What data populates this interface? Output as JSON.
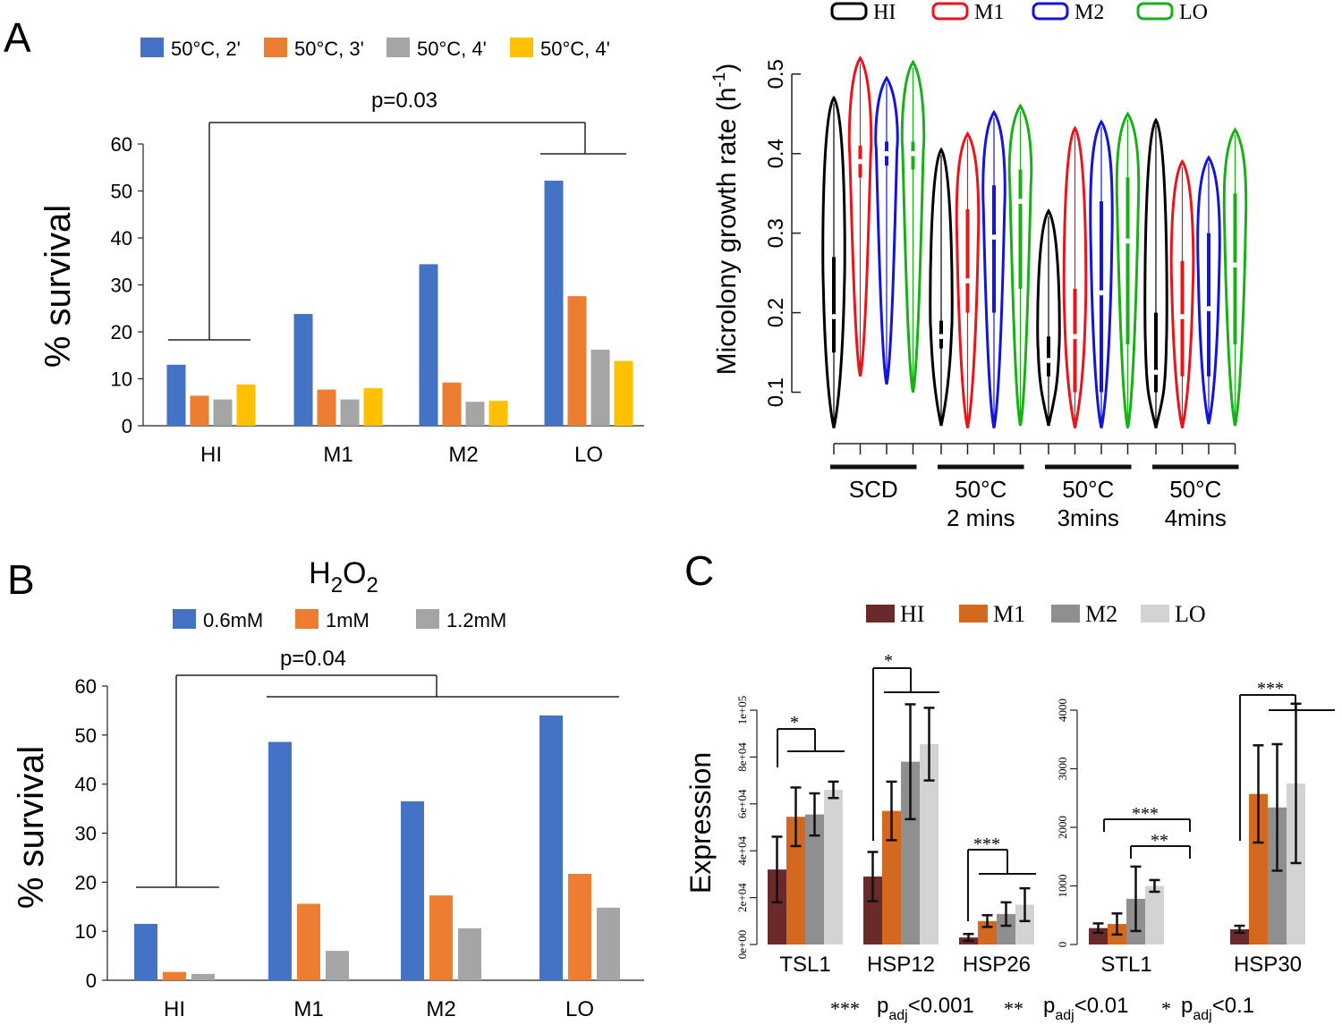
{
  "panels": {
    "a": "A",
    "b": "B",
    "c": "C"
  },
  "chart_data": [
    {
      "id": "A",
      "type": "bar",
      "title": "",
      "ylabel": "% survival",
      "xlabel": "",
      "ylim": [
        0,
        60
      ],
      "yticks": [
        0,
        10,
        20,
        30,
        40,
        50,
        60
      ],
      "categories": [
        "HI",
        "M1",
        "M2",
        "LO"
      ],
      "series": [
        {
          "name": "50°C, 2'",
          "color": "#4472C4",
          "values": [
            13,
            23.8,
            34.4,
            52.2
          ]
        },
        {
          "name": "50°C, 3'",
          "color": "#ED7D31",
          "values": [
            6.4,
            7.7,
            9.2,
            27.6
          ]
        },
        {
          "name": "50°C, 4'",
          "color": "#A5A5A5",
          "values": [
            5.6,
            5.6,
            5.1,
            16.2
          ]
        },
        {
          "name": "50°C, 4'",
          "color": "#FFC000",
          "values": [
            8.8,
            8,
            5.3,
            13.8
          ]
        }
      ],
      "annotation": "p=0.03"
    },
    {
      "id": "A-right",
      "type": "violin",
      "ylabel": "Microlony growth rate (h",
      "ylabel_sup": "-1",
      "ylabel_end": ")",
      "ylim": [
        0.05,
        0.52
      ],
      "yticks": [
        "0.1",
        "0.2",
        "0.3",
        "0.4",
        "0.5"
      ],
      "legend": [
        {
          "name": "HI",
          "color": "#000000"
        },
        {
          "name": "M1",
          "color": "#E8151B"
        },
        {
          "name": "M2",
          "color": "#1515D8"
        },
        {
          "name": "LO",
          "color": "#17B017"
        }
      ],
      "groups": [
        {
          "name": "SCD",
          "label1": "SCD",
          "label2": ""
        },
        {
          "name": "50°C 2 mins",
          "label1": "50°C",
          "label2": "2 mins"
        },
        {
          "name": "50°C 3mins",
          "label1": "50°C",
          "label2": "3mins"
        },
        {
          "name": "50°C 4mins",
          "label1": "50°C",
          "label2": "4mins"
        }
      ],
      "violins": [
        {
          "group": "SCD",
          "strain": "HI",
          "min": 0.055,
          "max": 0.47,
          "median": 0.195,
          "q1": 0.15,
          "q3": 0.27
        },
        {
          "group": "SCD",
          "strain": "M1",
          "min": 0.12,
          "max": 0.52,
          "median": 0.39,
          "q1": 0.37,
          "q3": 0.41
        },
        {
          "group": "SCD",
          "strain": "M2",
          "min": 0.11,
          "max": 0.495,
          "median": 0.4,
          "q1": 0.385,
          "q3": 0.415
        },
        {
          "group": "SCD",
          "strain": "LO",
          "min": 0.1,
          "max": 0.515,
          "median": 0.4,
          "q1": 0.38,
          "q3": 0.415
        },
        {
          "group": "50°C 2 mins",
          "strain": "HI",
          "min": 0.058,
          "max": 0.405,
          "median": 0.17,
          "q1": 0.155,
          "q3": 0.19
        },
        {
          "group": "50°C 2 mins",
          "strain": "M1",
          "min": 0.055,
          "max": 0.425,
          "median": 0.24,
          "q1": 0.2,
          "q3": 0.33
        },
        {
          "group": "50°C 2 mins",
          "strain": "M2",
          "min": 0.055,
          "max": 0.452,
          "median": 0.295,
          "q1": 0.2,
          "q3": 0.36
        },
        {
          "group": "50°C 2 mins",
          "strain": "LO",
          "min": 0.058,
          "max": 0.46,
          "median": 0.34,
          "q1": 0.23,
          "q3": 0.38
        },
        {
          "group": "50°C 3mins",
          "strain": "HI",
          "min": 0.058,
          "max": 0.328,
          "median": 0.14,
          "q1": 0.12,
          "q3": 0.17
        },
        {
          "group": "50°C 3mins",
          "strain": "M1",
          "min": 0.055,
          "max": 0.432,
          "median": 0.17,
          "q1": 0.1,
          "q3": 0.23
        },
        {
          "group": "50°C 3mins",
          "strain": "M2",
          "min": 0.055,
          "max": 0.44,
          "median": 0.225,
          "q1": 0.1,
          "q3": 0.34
        },
        {
          "group": "50°C 3mins",
          "strain": "LO",
          "min": 0.055,
          "max": 0.45,
          "median": 0.29,
          "q1": 0.16,
          "q3": 0.37
        },
        {
          "group": "50°C 4mins",
          "strain": "HI",
          "min": 0.055,
          "max": 0.442,
          "median": 0.125,
          "q1": 0.1,
          "q3": 0.2
        },
        {
          "group": "50°C 4mins",
          "strain": "M1",
          "min": 0.055,
          "max": 0.39,
          "median": 0.195,
          "q1": 0.12,
          "q3": 0.265
        },
        {
          "group": "50°C 4mins",
          "strain": "M2",
          "min": 0.06,
          "max": 0.395,
          "median": 0.205,
          "q1": 0.12,
          "q3": 0.3
        },
        {
          "group": "50°C 4mins",
          "strain": "LO",
          "min": 0.058,
          "max": 0.43,
          "median": 0.26,
          "q1": 0.16,
          "q3": 0.35
        }
      ]
    },
    {
      "id": "B",
      "type": "bar",
      "title": "H2O2",
      "title_main": "H",
      "title_sub1": "2",
      "title_mid": "O",
      "title_sub2": "2",
      "ylabel": "% survival",
      "ylim": [
        0,
        60
      ],
      "yticks": [
        0,
        10,
        20,
        30,
        40,
        50,
        60
      ],
      "categories": [
        "HI",
        "M1",
        "M2",
        "LO"
      ],
      "series": [
        {
          "name": "0.6mM",
          "color": "#4472C4",
          "values": [
            11.5,
            48.6,
            36.5,
            54
          ]
        },
        {
          "name": "1mM",
          "color": "#ED7D31",
          "values": [
            1.7,
            15.6,
            17.3,
            21.7
          ]
        },
        {
          "name": "1.2mM",
          "color": "#A5A5A5",
          "values": [
            1.3,
            6,
            10.6,
            14.8
          ]
        }
      ],
      "annotation": "p=0.04"
    },
    {
      "id": "C",
      "type": "bar",
      "ylabel": "Expression",
      "legend": [
        {
          "name": "HI",
          "color": "#6B2A2A"
        },
        {
          "name": "M1",
          "color": "#D2691E"
        },
        {
          "name": "M2",
          "color": "#8F8F8F"
        },
        {
          "name": "LO",
          "color": "#D3D3D3"
        }
      ],
      "left": {
        "ylim": [
          0,
          100000
        ],
        "yticks": [
          "0e+00",
          "2e+04",
          "4e+04",
          "6e+04",
          "8e+04",
          "1e+05"
        ],
        "categories": [
          "TSL1",
          "HSP12",
          "HSP26"
        ],
        "values": [
          {
            "gene": "TSL1",
            "mean": [
              32000,
              54500,
              55500,
              66000
            ],
            "err": [
              14000,
              12500,
              9000,
              3500
            ]
          },
          {
            "gene": "HSP12",
            "mean": [
              29000,
              57000,
              78000,
              85500
            ],
            "err": [
              10500,
              12500,
              24500,
              15500
            ]
          },
          {
            "gene": "HSP26",
            "mean": [
              3000,
              10000,
              13000,
              17000
            ],
            "err": [
              1500,
              2500,
              5000,
              7000
            ]
          }
        ],
        "sig": [
          "*",
          "*",
          "***"
        ]
      },
      "right": {
        "ylim": [
          0,
          4000
        ],
        "yticks": [
          "0",
          "1000",
          "2000",
          "3000",
          "4000"
        ],
        "categories": [
          "STL1",
          "HSP30"
        ],
        "values": [
          {
            "gene": "STL1",
            "mean": [
              280,
              350,
              780,
              1000
            ],
            "err": [
              80,
              180,
              550,
              100
            ]
          },
          {
            "gene": "HSP30",
            "mean": [
              260,
              2570,
              2340,
              2750
            ],
            "err": [
              60,
              830,
              1080,
              1360
            ]
          }
        ],
        "sig": [
          "***",
          "**",
          "***"
        ]
      },
      "footnote": {
        "s3": "***",
        "p1": "p",
        "sub1": "adj",
        "v1": "<0.001",
        "s2": "**",
        "p2": "p",
        "sub2": "adj",
        "v2": "<0.01",
        "s1": "*",
        "p3": "p",
        "sub3": "adj",
        "v3": "<0.1"
      }
    }
  ]
}
